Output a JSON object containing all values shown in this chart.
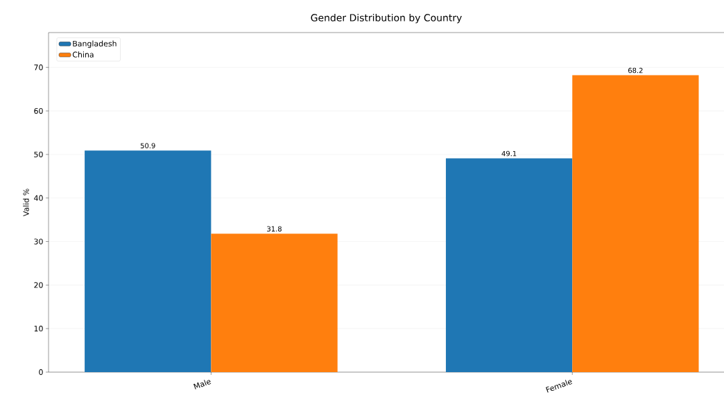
{
  "chart_data": {
    "type": "bar",
    "title": "Gender Distribution by Country",
    "ylabel": "Valid %",
    "categories": [
      "Male",
      "Female"
    ],
    "series": [
      {
        "name": "Bangladesh",
        "color": "#1f77b4",
        "values": [
          50.9,
          49.1
        ]
      },
      {
        "name": "China",
        "color": "#ff7f0e",
        "values": [
          31.8,
          68.2
        ]
      }
    ],
    "ylim": [
      0,
      78
    ],
    "yticks": [
      0,
      10,
      20,
      30,
      40,
      50,
      60,
      70
    ],
    "grid": "y",
    "legend": "top left",
    "data_labels": true
  }
}
